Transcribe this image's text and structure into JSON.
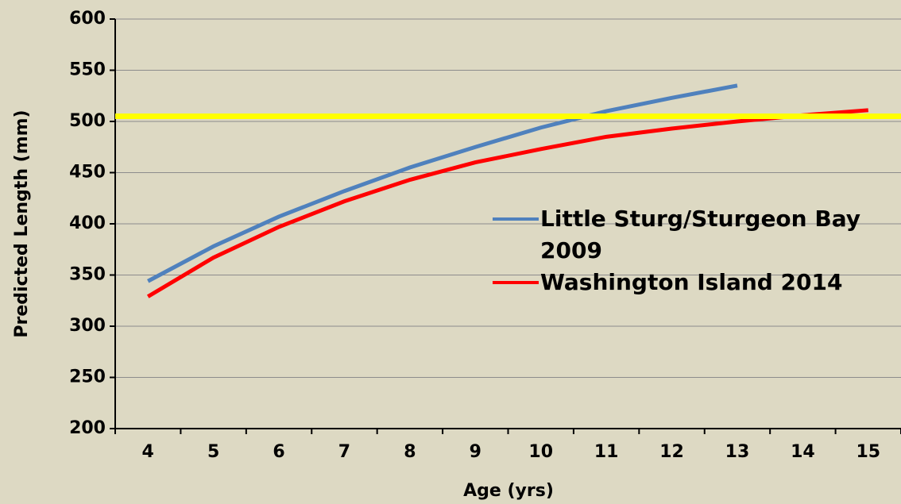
{
  "chart_data": {
    "type": "line",
    "x_label": "Age (yrs)",
    "y_label": "Predicted Length (mm)",
    "categories": [
      "4",
      "5",
      "6",
      "7",
      "8",
      "9",
      "10",
      "11",
      "12",
      "13",
      "14",
      "15"
    ],
    "series": [
      {
        "name": "Little Sturg/Sturgeon Bay 2009",
        "color": "#4f81bd",
        "values": [
          344,
          378,
          407,
          432,
          455,
          475,
          494,
          510,
          523,
          535,
          null,
          null
        ]
      },
      {
        "name": "Washington Island 2014",
        "color": "#ff0000",
        "values": [
          329,
          367,
          397,
          422,
          443,
          460,
          473,
          485,
          493,
          500,
          506,
          511
        ]
      }
    ],
    "reference_line": {
      "value": 505,
      "color": "#ffff00"
    },
    "ylim": [
      200,
      600
    ],
    "yticks": [
      200,
      250,
      300,
      350,
      400,
      450,
      500,
      550,
      600
    ],
    "grid": true
  }
}
